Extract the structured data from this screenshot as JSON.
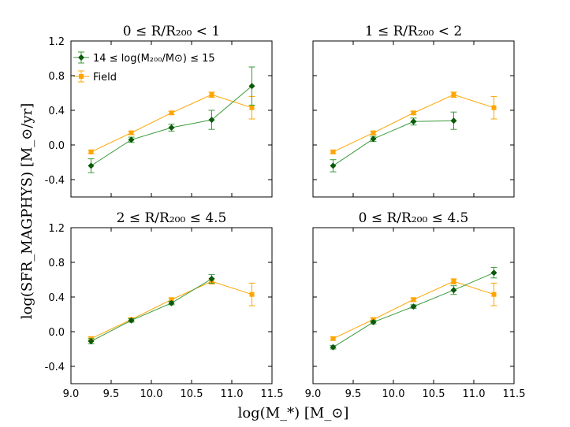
{
  "figure": {
    "ylabel": "log(SFR_MAGPHYS) [M_⊙/yr]",
    "xlabel": "log(M_*) [M_⊙]"
  },
  "colors": {
    "cluster": "#0a5a0a",
    "cluster_err": "#3a9a3a",
    "field": "#ffa500"
  },
  "legend": {
    "cluster_label": "14 ≤ log(M₂₀₀/M⊙) ≤ 15",
    "field_label": "Field"
  },
  "chart_data": [
    {
      "type": "line",
      "title": "0 ≤ R/R₂₀₀ < 1",
      "xlim": [
        9.0,
        11.5
      ],
      "ylim": [
        -0.6,
        1.2
      ],
      "xticks": [
        "9.0",
        "9.5",
        "10.0",
        "10.5",
        "11.0",
        "11.5"
      ],
      "yticks": [
        "-0.4",
        "0.0",
        "0.4",
        "0.8",
        "1.2"
      ],
      "series": [
        {
          "name": "14 ≤ log(M200/M⊙) ≤ 15",
          "x": [
            9.25,
            9.75,
            10.25,
            10.75,
            11.25
          ],
          "y": [
            -0.24,
            0.06,
            0.2,
            0.29,
            0.68
          ],
          "err": [
            0.08,
            0.03,
            0.04,
            0.11,
            0.22
          ]
        },
        {
          "name": "Field",
          "x": [
            9.25,
            9.75,
            10.25,
            10.75,
            11.25
          ],
          "y": [
            -0.08,
            0.14,
            0.37,
            0.58,
            0.43
          ],
          "err": [
            0.02,
            0.02,
            0.02,
            0.03,
            0.13
          ]
        }
      ]
    },
    {
      "type": "line",
      "title": "1 ≤ R/R₂₀₀ < 2",
      "xlim": [
        9.0,
        11.5
      ],
      "ylim": [
        -0.6,
        1.2
      ],
      "xticks": [
        "9.0",
        "9.5",
        "10.0",
        "10.5",
        "11.0",
        "11.5"
      ],
      "yticks": [
        "-0.4",
        "0.0",
        "0.4",
        "0.8",
        "1.2"
      ],
      "series": [
        {
          "name": "14 ≤ log(M200/M⊙) ≤ 15",
          "x": [
            9.25,
            9.75,
            10.25,
            10.75
          ],
          "y": [
            -0.24,
            0.07,
            0.27,
            0.28
          ],
          "err": [
            0.07,
            0.03,
            0.04,
            0.1
          ]
        },
        {
          "name": "Field",
          "x": [
            9.25,
            9.75,
            10.25,
            10.75,
            11.25
          ],
          "y": [
            -0.08,
            0.14,
            0.37,
            0.58,
            0.43
          ],
          "err": [
            0.02,
            0.02,
            0.02,
            0.03,
            0.13
          ]
        }
      ]
    },
    {
      "type": "line",
      "title": "2 ≤ R/R₂₀₀ ≤ 4.5",
      "xlim": [
        9.0,
        11.5
      ],
      "ylim": [
        -0.6,
        1.2
      ],
      "xticks": [
        "9.0",
        "9.5",
        "10.0",
        "10.5",
        "11.0",
        "11.5"
      ],
      "yticks": [
        "-0.4",
        "0.0",
        "0.4",
        "0.8",
        "1.2"
      ],
      "series": [
        {
          "name": "14 ≤ log(M200/M⊙) ≤ 15",
          "x": [
            9.25,
            9.75,
            10.25,
            10.75
          ],
          "y": [
            -0.11,
            0.13,
            0.33,
            0.61
          ],
          "err": [
            0.03,
            0.02,
            0.02,
            0.05
          ]
        },
        {
          "name": "Field",
          "x": [
            9.25,
            9.75,
            10.25,
            10.75,
            11.25
          ],
          "y": [
            -0.08,
            0.14,
            0.37,
            0.58,
            0.43
          ],
          "err": [
            0.02,
            0.02,
            0.02,
            0.03,
            0.13
          ]
        }
      ]
    },
    {
      "type": "line",
      "title": "0 ≤ R/R₂₀₀ ≤ 4.5",
      "xlim": [
        9.0,
        11.5
      ],
      "ylim": [
        -0.6,
        1.2
      ],
      "xticks": [
        "9.0",
        "9.5",
        "10.0",
        "10.5",
        "11.0",
        "11.5"
      ],
      "yticks": [
        "-0.4",
        "0.0",
        "0.4",
        "0.8",
        "1.2"
      ],
      "series": [
        {
          "name": "14 ≤ log(M200/M⊙) ≤ 15",
          "x": [
            9.25,
            9.75,
            10.25,
            10.75,
            11.25
          ],
          "y": [
            -0.18,
            0.11,
            0.29,
            0.48,
            0.68
          ],
          "err": [
            0.02,
            0.02,
            0.02,
            0.05,
            0.06
          ]
        },
        {
          "name": "Field",
          "x": [
            9.25,
            9.75,
            10.25,
            10.75,
            11.25
          ],
          "y": [
            -0.08,
            0.14,
            0.37,
            0.58,
            0.43
          ],
          "err": [
            0.02,
            0.02,
            0.02,
            0.03,
            0.13
          ]
        }
      ]
    }
  ]
}
